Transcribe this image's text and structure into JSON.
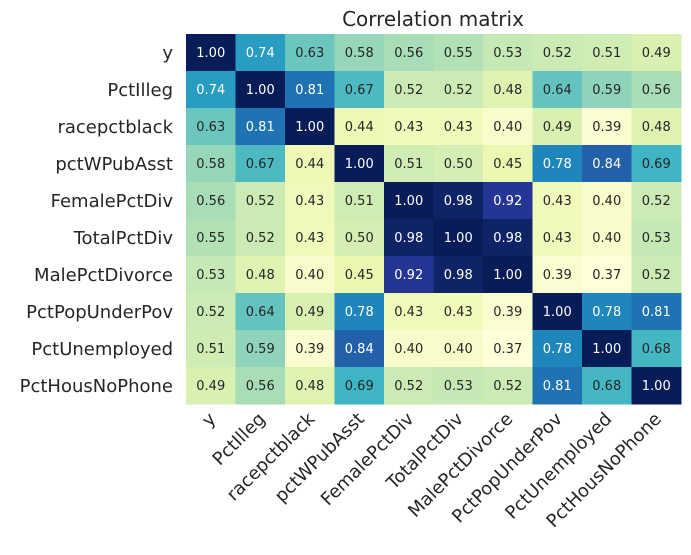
{
  "chart_data": {
    "type": "heatmap",
    "title": "Correlation matrix",
    "xlabel": "",
    "ylabel": "",
    "colormap": "YlGnBu",
    "value_range": [
      0.37,
      1.0
    ],
    "labels": [
      "y",
      "PctIlleg",
      "racepctblack",
      "pctWPubAsst",
      "FemalePctDiv",
      "TotalPctDiv",
      "MalePctDivorce",
      "PctPopUnderPov",
      "PctUnemployed",
      "PctHousNoPhone"
    ],
    "values": [
      [
        1.0,
        0.74,
        0.63,
        0.58,
        0.56,
        0.55,
        0.53,
        0.52,
        0.51,
        0.49
      ],
      [
        0.74,
        1.0,
        0.81,
        0.67,
        0.52,
        0.52,
        0.48,
        0.64,
        0.59,
        0.56
      ],
      [
        0.63,
        0.81,
        1.0,
        0.44,
        0.43,
        0.43,
        0.4,
        0.49,
        0.39,
        0.48
      ],
      [
        0.58,
        0.67,
        0.44,
        1.0,
        0.51,
        0.5,
        0.45,
        0.78,
        0.84,
        0.69
      ],
      [
        0.56,
        0.52,
        0.43,
        0.51,
        1.0,
        0.98,
        0.92,
        0.43,
        0.4,
        0.52
      ],
      [
        0.55,
        0.52,
        0.43,
        0.5,
        0.98,
        1.0,
        0.98,
        0.43,
        0.4,
        0.53
      ],
      [
        0.53,
        0.48,
        0.4,
        0.45,
        0.92,
        0.98,
        1.0,
        0.39,
        0.37,
        0.52
      ],
      [
        0.52,
        0.64,
        0.49,
        0.78,
        0.43,
        0.43,
        0.39,
        1.0,
        0.78,
        0.81
      ],
      [
        0.51,
        0.59,
        0.39,
        0.84,
        0.4,
        0.4,
        0.37,
        0.78,
        1.0,
        0.68
      ],
      [
        0.49,
        0.56,
        0.48,
        0.69,
        0.52,
        0.53,
        0.52,
        0.81,
        0.68,
        1.0
      ]
    ],
    "value_format": "2dp",
    "colorbar": false,
    "grid": false
  }
}
